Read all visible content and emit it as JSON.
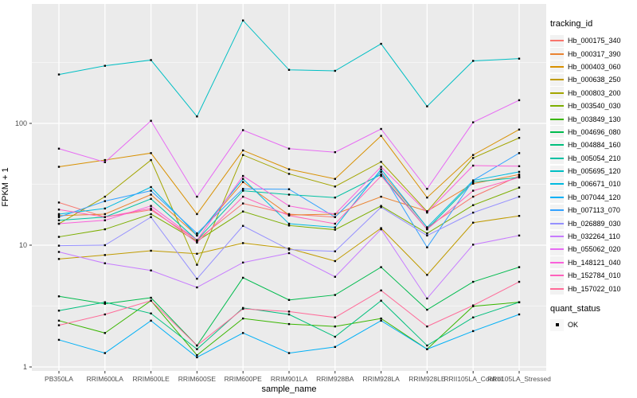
{
  "chart_data": {
    "type": "line",
    "title": "",
    "xlabel": "sample_name",
    "ylabel": "FPKM + 1",
    "y_scale": "log10",
    "y_ticks": [
      1,
      10,
      100
    ],
    "y_minor_ticks": [
      3.1623,
      31.623,
      316.23
    ],
    "ylim": [
      1,
      950
    ],
    "grid": true,
    "panel_bg": "#EBEBEB",
    "grid_color": "#FFFFFF",
    "point_color": "#000000",
    "tick_color": "#333333",
    "tick_label_color": "#4D4D4D",
    "categories": [
      "PB350LA",
      "RRIM600LA",
      "RRIM600LE",
      "RRIM600SE",
      "RRIM600PE",
      "RRIM901LA",
      "RRIM928BA",
      "RRIM928LA",
      "RRIM928LE",
      "RRII105LA_Control",
      "RRII105LA_Stressed"
    ],
    "legend": {
      "title": "tracking_id",
      "position": "right"
    },
    "quant_status": {
      "title": "quant_status",
      "items": [
        {
          "label": "OK",
          "marker": "black-square"
        }
      ]
    },
    "series": [
      {
        "name": "Hb_000175_340",
        "color": "#F8766D",
        "values": [
          22.4,
          17,
          19.5,
          11,
          22,
          18,
          17,
          40,
          14,
          25,
          37
        ]
      },
      {
        "name": "Hb_000317_390",
        "color": "#EA8331",
        "values": [
          17.5,
          18,
          26,
          12,
          33,
          17.7,
          18,
          25,
          19,
          32,
          38
        ]
      },
      {
        "name": "Hb_000403_060",
        "color": "#D89000",
        "values": [
          44,
          50,
          57,
          18,
          60,
          42,
          35,
          79,
          24.6,
          55,
          89
        ]
      },
      {
        "name": "Hb_000638_250",
        "color": "#C09B00",
        "values": [
          7.7,
          8.3,
          9,
          8.5,
          10.4,
          9.4,
          7.4,
          13.8,
          5.7,
          15.3,
          17.4
        ]
      },
      {
        "name": "Hb_000803_200",
        "color": "#A3A500",
        "values": [
          15,
          25,
          50,
          6.9,
          55,
          38.5,
          30.3,
          48.3,
          18.9,
          52,
          76
        ]
      },
      {
        "name": "Hb_003540_030",
        "color": "#7CAE00",
        "values": [
          11.7,
          13.5,
          18,
          10.8,
          18.9,
          14.5,
          13.4,
          21,
          12.5,
          21.3,
          29.7
        ]
      },
      {
        "name": "Hb_003849_130",
        "color": "#39B600",
        "values": [
          2.4,
          1.9,
          3.5,
          1.25,
          2.5,
          2.25,
          2.15,
          2.5,
          1.4,
          3.15,
          3.4
        ]
      },
      {
        "name": "Hb_004696_080",
        "color": "#00BB4E",
        "values": [
          3.8,
          3.3,
          3.7,
          1.5,
          5.4,
          3.55,
          3.9,
          6.6,
          2.95,
          5,
          6.6
        ]
      },
      {
        "name": "Hb_004884_160",
        "color": "#00BF7D",
        "values": [
          2.9,
          3.4,
          2.75,
          1.4,
          3.05,
          2.7,
          1.77,
          3.5,
          1.5,
          2.55,
          3.4
        ]
      },
      {
        "name": "Hb_005054_210",
        "color": "#00C1A3",
        "values": [
          16,
          17,
          24,
          11,
          28,
          26,
          24.6,
          38,
          13.5,
          33,
          36
        ]
      },
      {
        "name": "Hb_005695_120",
        "color": "#00BFC4",
        "values": [
          252,
          297,
          331,
          114,
          700,
          275,
          270,
          450,
          138,
          326,
          340
        ]
      },
      {
        "name": "Hb_006671_010",
        "color": "#00BAE0",
        "values": [
          18,
          20,
          30,
          12,
          35,
          15,
          14,
          42,
          14,
          34,
          40
        ]
      },
      {
        "name": "Hb_007044_120",
        "color": "#00B0F6",
        "values": [
          1.67,
          1.3,
          2.4,
          1.2,
          1.9,
          1.3,
          1.46,
          2.4,
          1.4,
          1.97,
          2.7
        ]
      },
      {
        "name": "Hb_007113_070",
        "color": "#35A2FF",
        "values": [
          17,
          23,
          28,
          12.5,
          29,
          28.8,
          17,
          40,
          9.6,
          34,
          57
        ]
      },
      {
        "name": "Hb_026889_030",
        "color": "#9590FF",
        "values": [
          9.9,
          10,
          17,
          5.3,
          14.4,
          9.2,
          8.9,
          20.5,
          12,
          18.5,
          25
        ]
      },
      {
        "name": "Hb_032264_110",
        "color": "#C77CFF",
        "values": [
          8.8,
          7.1,
          6.2,
          4.5,
          7.2,
          8.6,
          5.5,
          13.5,
          3.65,
          10.1,
          12
        ]
      },
      {
        "name": "Hb_055062_020",
        "color": "#E76BF3",
        "values": [
          62,
          48,
          105,
          25,
          88,
          62,
          58,
          90,
          29,
          102,
          155
        ]
      },
      {
        "name": "Hb_148121_040",
        "color": "#FA62DB",
        "values": [
          15,
          16,
          21,
          11,
          37,
          21,
          18,
          44,
          18.5,
          45,
          44.5
        ]
      },
      {
        "name": "Hb_152784_010",
        "color": "#FF62BC",
        "values": [
          19.6,
          17,
          20,
          10.5,
          25,
          17.5,
          15,
          37,
          13.5,
          28,
          36
        ]
      },
      {
        "name": "Hb_157022_010",
        "color": "#FF6A98",
        "values": [
          2.2,
          2.7,
          3.5,
          1.5,
          3,
          2.85,
          2.55,
          4.25,
          2.15,
          3.2,
          5
        ]
      }
    ]
  }
}
